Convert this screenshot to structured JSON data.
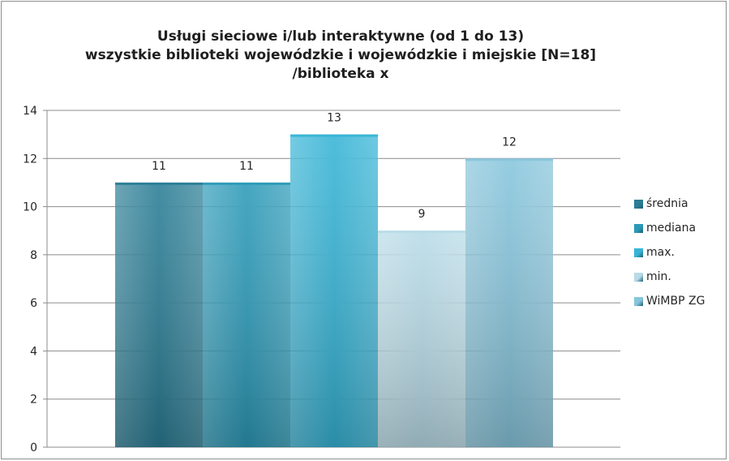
{
  "chart_data": {
    "type": "bar",
    "title_lines": [
      "Usługi sieciowe i/lub interaktywne  (od 1 do 13)",
      "wszystkie biblioteki wojewódzkie i wojewódzkie i miejskie  [N=18]",
      "/biblioteka x"
    ],
    "series": [
      {
        "name": "średnia",
        "values": [
          11
        ],
        "color": "#2a7d95"
      },
      {
        "name": "mediana",
        "values": [
          11
        ],
        "color": "#2b9ab8"
      },
      {
        "name": "max.",
        "values": [
          13
        ],
        "color": "#36b4d6"
      },
      {
        "name": "min.",
        "values": [
          9
        ],
        "color": "#b8dbe7"
      },
      {
        "name": "WiMBP ZG",
        "values": [
          12
        ],
        "color": "#87c5dc"
      }
    ],
    "ylim": [
      0,
      14
    ],
    "yticks": [
      "0",
      "2",
      "4",
      "6",
      "8",
      "10",
      "12",
      "14"
    ],
    "grid": true,
    "legend_position": "right"
  }
}
